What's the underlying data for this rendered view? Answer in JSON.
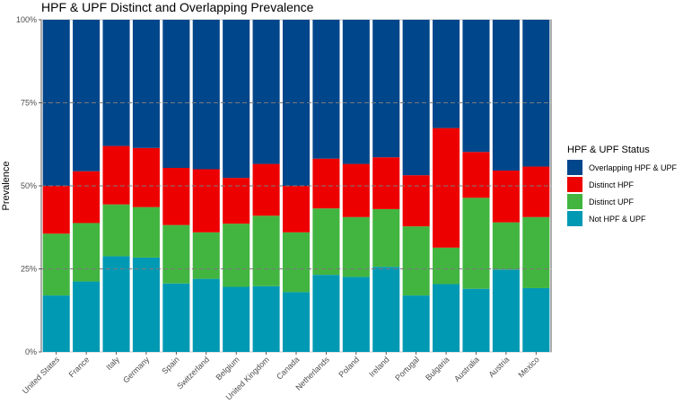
{
  "chart_data": {
    "type": "bar",
    "stacked": true,
    "title": "HPF & UPF Distinct and Overlapping Prevalence",
    "ylabel": "Prevalence",
    "xlabel": "",
    "ylim": [
      0,
      1
    ],
    "yticks": [
      "0%",
      "25%",
      "50%",
      "75%",
      "100%"
    ],
    "grid": true,
    "legend_position": "right",
    "legend_title": "HPF & UPF Status",
    "categories": [
      "United States",
      "France",
      "Italy",
      "Germany",
      "Spain",
      "Switzerland",
      "Belgium",
      "United Kingdom",
      "Canada",
      "Netherlands",
      "Poland",
      "Ireland",
      "Portugal",
      "Bulgaria",
      "Australia",
      "Austria",
      "Mexico"
    ],
    "series": [
      {
        "name": "Not HPF & UPF",
        "color": "#0099b4",
        "values": [
          0.17,
          0.212,
          0.288,
          0.284,
          0.206,
          0.22,
          0.196,
          0.198,
          0.18,
          0.232,
          0.226,
          0.256,
          0.17,
          0.204,
          0.19,
          0.248,
          0.192
        ]
      },
      {
        "name": "Distinct UPF",
        "color": "#42b540",
        "values": [
          0.186,
          0.176,
          0.156,
          0.152,
          0.176,
          0.14,
          0.19,
          0.212,
          0.18,
          0.2,
          0.18,
          0.174,
          0.208,
          0.11,
          0.274,
          0.142,
          0.214
        ]
      },
      {
        "name": "Distinct HPF",
        "color": "#ed0000",
        "values": [
          0.144,
          0.156,
          0.176,
          0.178,
          0.172,
          0.19,
          0.138,
          0.156,
          0.14,
          0.15,
          0.16,
          0.156,
          0.154,
          0.36,
          0.138,
          0.156,
          0.152
        ]
      },
      {
        "name": "Overlapping HPF & UPF",
        "color": "#00468b",
        "values": [
          0.5,
          0.456,
          0.38,
          0.386,
          0.446,
          0.45,
          0.476,
          0.434,
          0.5,
          0.418,
          0.434,
          0.414,
          0.468,
          0.326,
          0.398,
          0.454,
          0.442
        ]
      }
    ]
  }
}
